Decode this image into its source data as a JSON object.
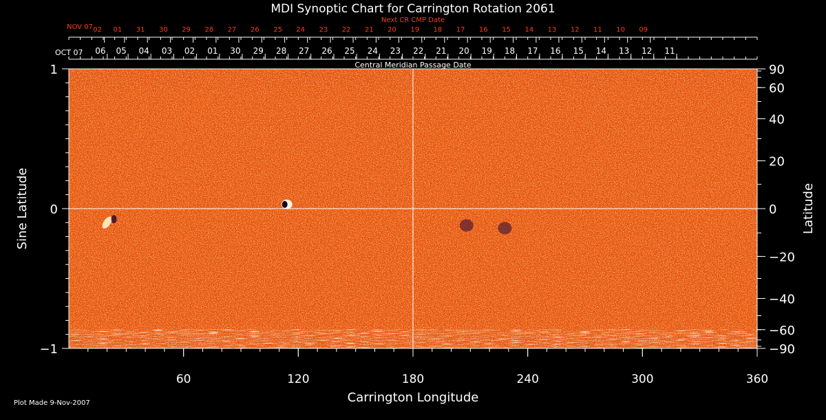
{
  "colors": {
    "background": "#000000",
    "axis": "#ffffff",
    "next_dates": "#ff3a1a",
    "map_base": "#e8520e"
  },
  "footnote": "Plot Made  9-Nov-2007",
  "chart_data": {
    "type": "heatmap",
    "title": "MDI Synoptic Chart for Carrington Rotation 2061",
    "xlabel": "Carrington Longitude",
    "ylabel_left": "Sine Latitude",
    "ylabel_right": "Latitude",
    "top_label": "Central Meridian Passage Date",
    "next_label": "Next CR CMP Date",
    "xlim": [
      0,
      360
    ],
    "ylim": [
      -1,
      1
    ],
    "x_ticks": [
      60,
      120,
      180,
      240,
      300,
      360
    ],
    "y_left_ticks": [
      {
        "value": 1,
        "label": "1"
      },
      {
        "value": 0,
        "label": "0"
      },
      {
        "value": -1,
        "label": "−1"
      }
    ],
    "y_right_ticks": [
      {
        "deg": 90,
        "label": "90"
      },
      {
        "deg": 60,
        "label": "60"
      },
      {
        "deg": 40,
        "label": "40"
      },
      {
        "deg": 20,
        "label": "20"
      },
      {
        "deg": 0,
        "label": "0"
      },
      {
        "deg": -20,
        "label": "−20"
      },
      {
        "deg": -40,
        "label": "−40"
      },
      {
        "deg": -60,
        "label": "−60"
      },
      {
        "deg": -90,
        "label": "−90"
      }
    ],
    "cmp_month_label": "OCT 07",
    "cmp_dates": [
      {
        "lon": 16.5,
        "label": "06"
      },
      {
        "lon": 27.4,
        "label": "05"
      },
      {
        "lon": 39.3,
        "label": "04"
      },
      {
        "lon": 51.3,
        "label": "03"
      },
      {
        "lon": 63.2,
        "label": "02"
      },
      {
        "lon": 75.2,
        "label": "01"
      },
      {
        "lon": 87.1,
        "label": "30"
      },
      {
        "lon": 99.1,
        "label": "29"
      },
      {
        "lon": 111.1,
        "label": "28"
      },
      {
        "lon": 123.0,
        "label": "27"
      },
      {
        "lon": 135.0,
        "label": "26"
      },
      {
        "lon": 146.9,
        "label": "25"
      },
      {
        "lon": 158.9,
        "label": "24"
      },
      {
        "lon": 170.8,
        "label": "23"
      },
      {
        "lon": 182.8,
        "label": "22"
      },
      {
        "lon": 194.7,
        "label": "21"
      },
      {
        "lon": 206.7,
        "label": "20"
      },
      {
        "lon": 218.6,
        "label": "19"
      },
      {
        "lon": 230.6,
        "label": "18"
      },
      {
        "lon": 242.6,
        "label": "17"
      },
      {
        "lon": 254.5,
        "label": "16"
      },
      {
        "lon": 266.5,
        "label": "15"
      },
      {
        "lon": 278.4,
        "label": "14"
      },
      {
        "lon": 290.4,
        "label": "13"
      },
      {
        "lon": 302.3,
        "label": "12"
      },
      {
        "lon": 314.3,
        "label": "11"
      }
    ],
    "next_month_label": "NOV 07",
    "next_dates": [
      {
        "lon": 15.0,
        "label": "02"
      },
      {
        "lon": 25.5,
        "label": "01"
      },
      {
        "lon": 37.5,
        "label": "31"
      },
      {
        "lon": 49.5,
        "label": "30"
      },
      {
        "lon": 61.4,
        "label": "29"
      },
      {
        "lon": 73.4,
        "label": "28"
      },
      {
        "lon": 85.3,
        "label": "27"
      },
      {
        "lon": 97.3,
        "label": "26"
      },
      {
        "lon": 109.3,
        "label": "25"
      },
      {
        "lon": 121.2,
        "label": "24"
      },
      {
        "lon": 133.2,
        "label": "23"
      },
      {
        "lon": 145.1,
        "label": "22"
      },
      {
        "lon": 157.1,
        "label": "21"
      },
      {
        "lon": 169.0,
        "label": "20"
      },
      {
        "lon": 181.0,
        "label": "19"
      },
      {
        "lon": 192.9,
        "label": "18"
      },
      {
        "lon": 204.9,
        "label": "17"
      },
      {
        "lon": 216.8,
        "label": "16"
      },
      {
        "lon": 228.8,
        "label": "15"
      },
      {
        "lon": 240.8,
        "label": "14"
      },
      {
        "lon": 252.7,
        "label": "13"
      },
      {
        "lon": 264.7,
        "label": "12"
      },
      {
        "lon": 276.6,
        "label": "11"
      },
      {
        "lon": 288.6,
        "label": "10"
      },
      {
        "lon": 300.5,
        "label": "09"
      }
    ],
    "features": [
      {
        "lon": 114,
        "sinlat": 0.03,
        "kind": "dark spot"
      },
      {
        "lon": 20,
        "sinlat": -0.1,
        "kind": "bright region"
      },
      {
        "lon": 208,
        "sinlat": -0.12,
        "kind": "dark cluster"
      },
      {
        "lon": 228,
        "sinlat": -0.14,
        "kind": "dark cluster"
      }
    ]
  }
}
